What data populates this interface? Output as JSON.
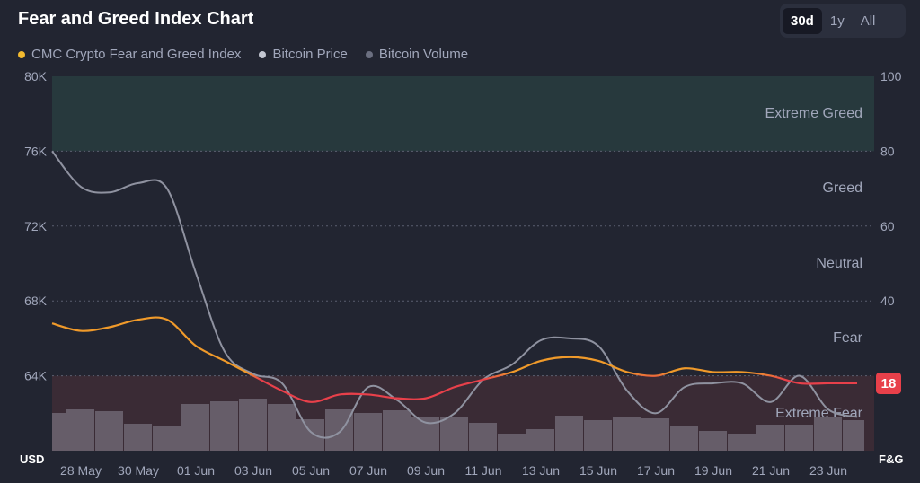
{
  "header": {
    "title": "Fear and Greed Index Chart"
  },
  "range_tabs": [
    {
      "label": "30d",
      "active": true
    },
    {
      "label": "1y",
      "active": false
    },
    {
      "label": "All",
      "active": false
    }
  ],
  "legend": [
    {
      "label": "CMC Crypto Fear and Greed Index",
      "color": "#f3ba2f"
    },
    {
      "label": "Bitcoin Price",
      "color": "#c3c6d1"
    },
    {
      "label": "Bitcoin Volume",
      "color": "#6b6f80"
    }
  ],
  "chart_data": {
    "type": "line",
    "x": [
      "27 May",
      "28 May",
      "29 May",
      "30 May",
      "31 May",
      "01 Jun",
      "02 Jun",
      "03 Jun",
      "04 Jun",
      "05 Jun",
      "06 Jun",
      "07 Jun",
      "08 Jun",
      "09 Jun",
      "10 Jun",
      "11 Jun",
      "12 Jun",
      "13 Jun",
      "14 Jun",
      "15 Jun",
      "16 Jun",
      "17 Jun",
      "18 Jun",
      "19 Jun",
      "20 Jun",
      "21 Jun",
      "22 Jun",
      "23 Jun",
      "24 Jun"
    ],
    "x_tick_labels": [
      "28 May",
      "30 May",
      "01 Jun",
      "03 Jun",
      "05 Jun",
      "07 Jun",
      "09 Jun",
      "11 Jun",
      "13 Jun",
      "15 Jun",
      "17 Jun",
      "19 Jun",
      "21 Jun",
      "23 Jun"
    ],
    "left_axis": {
      "label": "USD",
      "ticks": [
        "64K",
        "68K",
        "72K",
        "76K",
        "80K"
      ],
      "range": [
        60000,
        80000
      ]
    },
    "right_axis": {
      "label": "F&G",
      "ticks": [
        "40",
        "60",
        "80",
        "100"
      ],
      "range": [
        0,
        100
      ]
    },
    "zones": [
      {
        "label": "Extreme Greed",
        "min": 80,
        "max": 100,
        "color": "#27393d"
      },
      {
        "label": "Greed",
        "min": 60,
        "max": 80
      },
      {
        "label": "Neutral",
        "min": 40,
        "max": 60
      },
      {
        "label": "Fear",
        "min": 20,
        "max": 40
      },
      {
        "label": "Extreme Fear",
        "min": 0,
        "max": 20,
        "color": "#3a2b35"
      }
    ],
    "series": [
      {
        "name": "CMC Crypto Fear and Greed Index",
        "axis": "right",
        "values": [
          34,
          32,
          33,
          35,
          35,
          28,
          24,
          20,
          16,
          13,
          15,
          15,
          14,
          14,
          17,
          19,
          21,
          24,
          25,
          24,
          21,
          20,
          22,
          21,
          21,
          20,
          18,
          18,
          18
        ],
        "last_label": "18"
      },
      {
        "name": "Bitcoin Price",
        "axis": "left",
        "values": [
          76000,
          74100,
          73800,
          74300,
          74000,
          69500,
          65300,
          64100,
          63600,
          61000,
          61000,
          63400,
          62700,
          61500,
          62000,
          63800,
          64600,
          65900,
          66000,
          65600,
          63200,
          62000,
          63400,
          63600,
          63600,
          62600,
          64000,
          62200,
          61800
        ]
      },
      {
        "name": "Bitcoin Volume",
        "axis": "volume",
        "values": [
          42,
          46,
          44,
          30,
          27,
          52,
          55,
          58,
          52,
          35,
          46,
          42,
          45,
          37,
          38,
          31,
          19,
          24,
          39,
          34,
          37,
          36,
          27,
          22,
          19,
          29,
          29,
          38,
          34
        ]
      }
    ]
  }
}
